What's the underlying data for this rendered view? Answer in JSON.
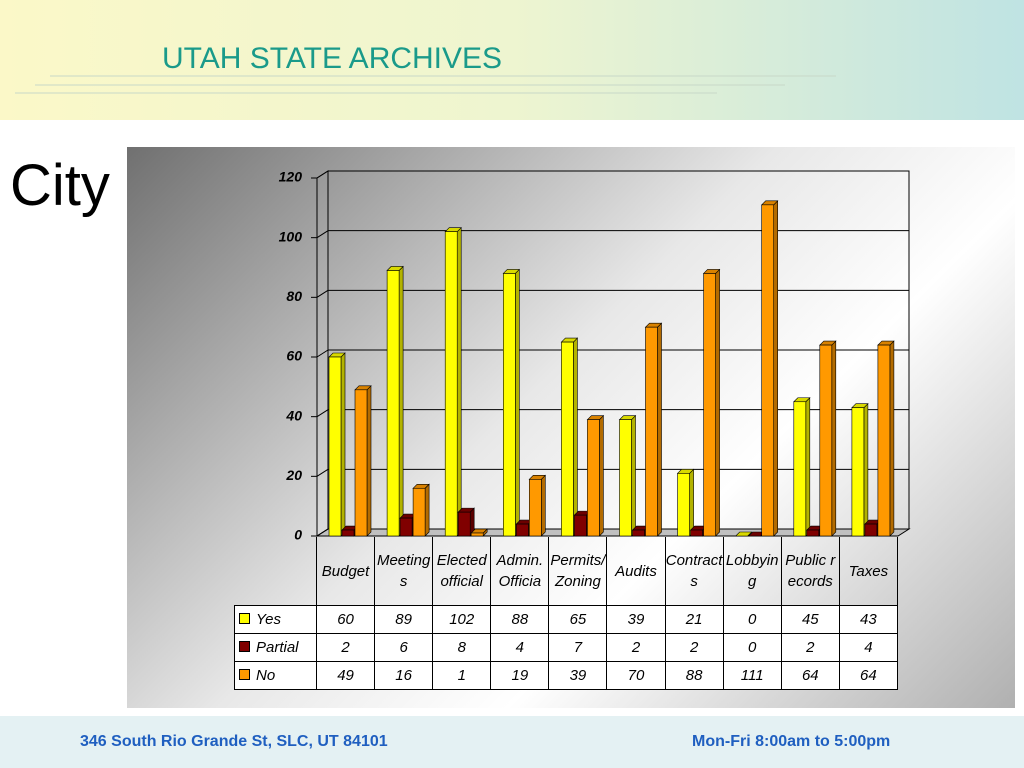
{
  "header": {
    "title": "UTAH STATE ARCHIVES"
  },
  "slide_title": "City",
  "footer": {
    "address": "346 South Rio Grande St, SLC, UT 84101",
    "hours": "Mon-Fri 8:00am to 5:00pm"
  },
  "chart_data": {
    "type": "bar",
    "categories": [
      "Budget",
      "Meetings",
      "Elected official",
      "Admin. Officia",
      "Permits/Zoning",
      "Audits",
      "Contracts",
      "Lobbying",
      "Public records",
      "Taxes"
    ],
    "series": [
      {
        "name": "Yes",
        "color": "#ffff00",
        "values": [
          60,
          89,
          102,
          88,
          65,
          39,
          21,
          0,
          45,
          43
        ]
      },
      {
        "name": "Partial",
        "color": "#800000",
        "values": [
          2,
          6,
          8,
          4,
          7,
          2,
          2,
          0,
          2,
          4
        ]
      },
      {
        "name": "No",
        "color": "#ff9900",
        "values": [
          49,
          16,
          1,
          19,
          39,
          70,
          88,
          111,
          64,
          64
        ]
      }
    ],
    "ylim": [
      0,
      120
    ],
    "yticks": [
      0,
      20,
      40,
      60,
      80,
      100,
      120
    ],
    "grid": true
  }
}
